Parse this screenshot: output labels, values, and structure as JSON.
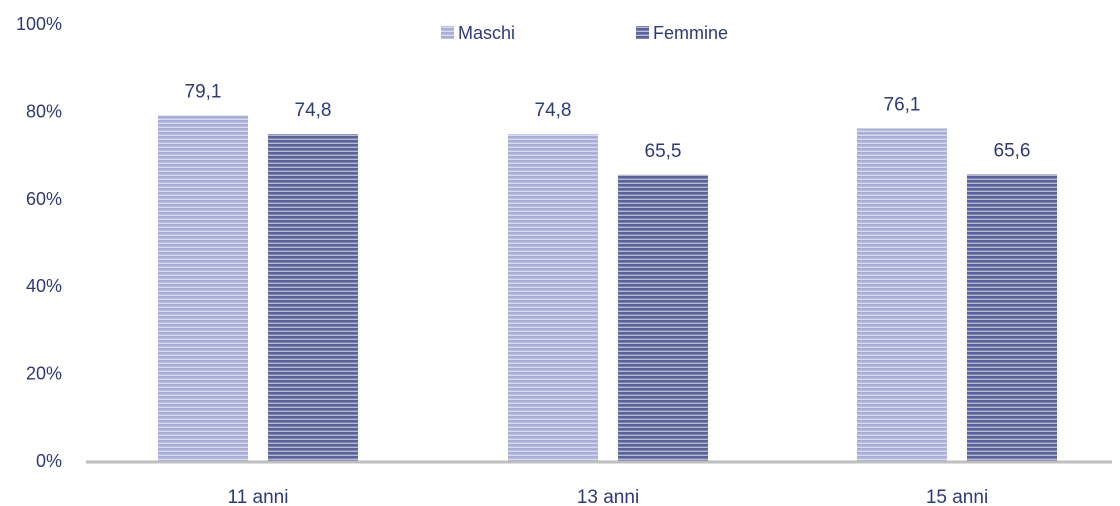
{
  "chart_data": {
    "type": "bar",
    "categories": [
      "11 anni",
      "13 anni",
      "15 anni"
    ],
    "series": [
      {
        "name": "Maschi",
        "values": [
          79.1,
          74.8,
          76.1
        ],
        "color": "#a9aed6",
        "stripe": "#ffffff"
      },
      {
        "name": "Femmine",
        "values": [
          74.8,
          65.5,
          65.6
        ],
        "color": "#5a6399",
        "stripe": "#ffffff"
      }
    ],
    "data_labels": [
      [
        "79,1",
        "74,8",
        "76,1"
      ],
      [
        "74,8",
        "65,5",
        "65,6"
      ]
    ],
    "yticks": [
      "0%",
      "20%",
      "40%",
      "60%",
      "80%",
      "100%"
    ],
    "ylim": [
      0,
      100
    ],
    "title": "",
    "xlabel": "",
    "ylabel": "",
    "legend_position": "top",
    "grid": false,
    "axis_color": "#bfbfbf",
    "text_color": "#2e3a78"
  }
}
